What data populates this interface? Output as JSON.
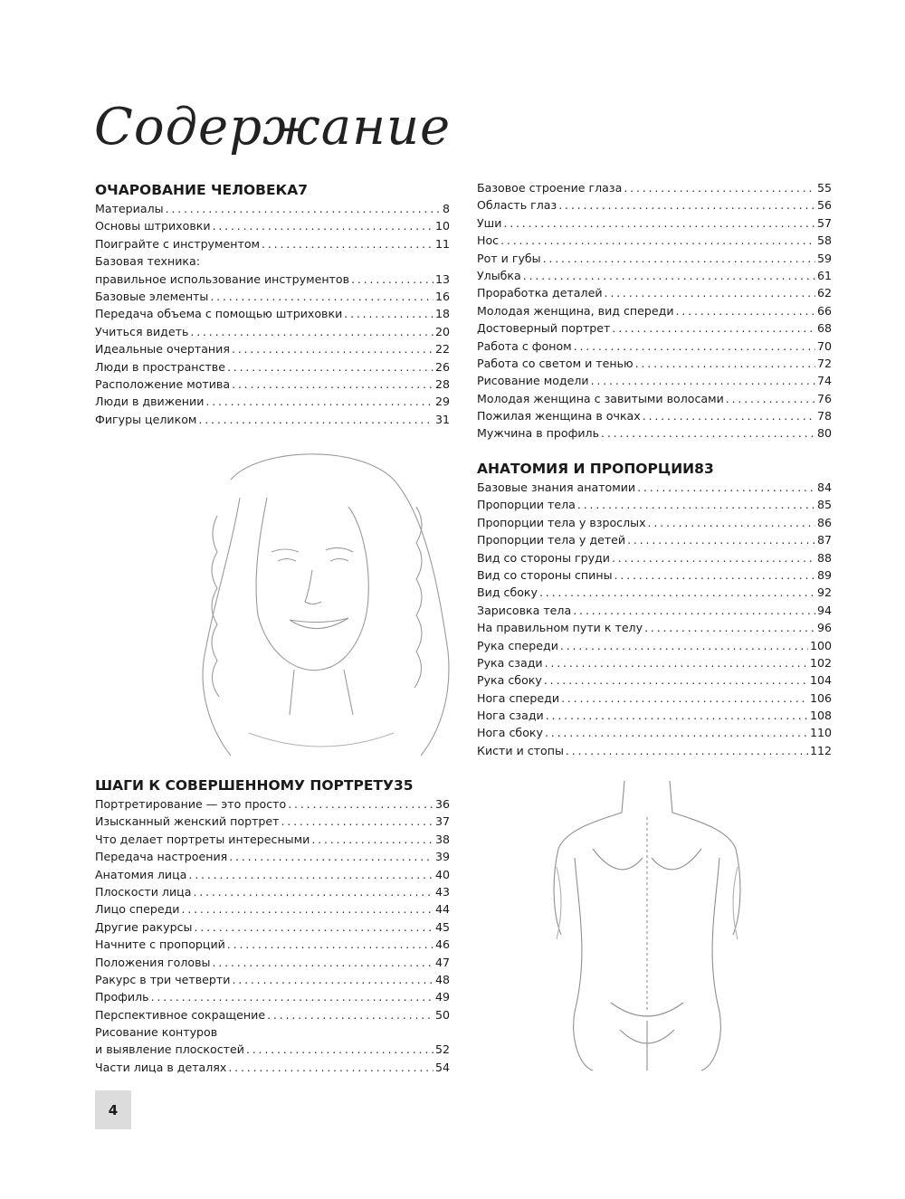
{
  "title": "Содержание",
  "page_number": "4",
  "sections": [
    {
      "heading": "ОЧАРОВАНИЕ ЧЕЛОВЕКА",
      "page": "7",
      "items": [
        {
          "label": "Материалы",
          "page": "8"
        },
        {
          "label": "Основы штриховки",
          "page": "10"
        },
        {
          "label": "Поиграйте с инструментом",
          "page": "11"
        },
        {
          "label": "Базовая техника:",
          "page": ""
        },
        {
          "label": "правильное использование инструментов",
          "page": "13"
        },
        {
          "label": "Базовые элементы",
          "page": "16"
        },
        {
          "label": "Передача объема с помощью штриховки",
          "page": "18"
        },
        {
          "label": "Учиться видеть",
          "page": "20"
        },
        {
          "label": "Идеальные очертания",
          "page": "22"
        },
        {
          "label": "Люди в пространстве",
          "page": "26"
        },
        {
          "label": "Расположение мотива",
          "page": "28"
        },
        {
          "label": "Люди в движении",
          "page": "29"
        },
        {
          "label": "Фигуры целиком",
          "page": "31"
        }
      ]
    },
    {
      "heading": "ШАГИ К СОВЕРШЕННОМУ ПОРТРЕТУ",
      "page": "35",
      "items": [
        {
          "label": "Портретирование — это просто",
          "page": "36"
        },
        {
          "label": "Изысканный женский портрет",
          "page": "37"
        },
        {
          "label": "Что делает портреты интересными",
          "page": "38"
        },
        {
          "label": "Передача настроения",
          "page": "39"
        },
        {
          "label": "Анатомия лица",
          "page": "40"
        },
        {
          "label": "Плоскости лица",
          "page": "43"
        },
        {
          "label": "Лицо спереди",
          "page": "44"
        },
        {
          "label": "Другие ракурсы",
          "page": "45"
        },
        {
          "label": "Начните с пропорций",
          "page": "46"
        },
        {
          "label": "Положения головы",
          "page": "47"
        },
        {
          "label": "Ракурс в три четверти",
          "page": "48"
        },
        {
          "label": "Профиль",
          "page": "49"
        },
        {
          "label": "Перспективное сокращение",
          "page": "50"
        },
        {
          "label": "Рисование контуров",
          "page": ""
        },
        {
          "label": "и выявление плоскостей",
          "page": "52"
        },
        {
          "label": "Части лица в деталях",
          "page": "54"
        },
        {
          "label": "Базовое строение глаза",
          "page": "55"
        },
        {
          "label": "Область глаз",
          "page": "56"
        },
        {
          "label": "Уши",
          "page": "57"
        },
        {
          "label": "Нос",
          "page": "58"
        },
        {
          "label": "Рот и губы",
          "page": "59"
        },
        {
          "label": "Улыбка",
          "page": "61"
        },
        {
          "label": "Проработка деталей",
          "page": "62"
        },
        {
          "label": "Молодая женщина, вид спереди",
          "page": "66"
        },
        {
          "label": "Достоверный портрет",
          "page": "68"
        },
        {
          "label": "Работа с фоном",
          "page": "70"
        },
        {
          "label": "Работа со светом и тенью",
          "page": "72"
        },
        {
          "label": "Рисование модели",
          "page": "74"
        },
        {
          "label": "Молодая женщина с завитыми волосами",
          "page": "76"
        },
        {
          "label": "Пожилая женщина в очках",
          "page": "78"
        },
        {
          "label": "Мужчина в профиль",
          "page": "80"
        }
      ]
    },
    {
      "heading": "АНАТОМИЯ И ПРОПОРЦИИ",
      "page": "83",
      "items": [
        {
          "label": "Базовые знания анатомии",
          "page": "84"
        },
        {
          "label": "Пропорции тела",
          "page": "85"
        },
        {
          "label": "Пропорции тела у взрослых",
          "page": "86"
        },
        {
          "label": "Пропорции тела у детей",
          "page": "87"
        },
        {
          "label": "Вид со стороны груди",
          "page": "88"
        },
        {
          "label": "Вид со стороны спины",
          "page": "89"
        },
        {
          "label": "Вид сбоку",
          "page": "92"
        },
        {
          "label": "Зарисовка тела",
          "page": "94"
        },
        {
          "label": "На правильном пути к телу",
          "page": "96"
        },
        {
          "label": "Рука спереди",
          "page": "100"
        },
        {
          "label": "Рука сзади",
          "page": "102"
        },
        {
          "label": "Рука сбоку",
          "page": "104"
        },
        {
          "label": "Нога спереди",
          "page": "106"
        },
        {
          "label": "Нога сзади",
          "page": "108"
        },
        {
          "label": "Нога сбоку",
          "page": "110"
        },
        {
          "label": "Кисти и стопы",
          "page": "112"
        }
      ]
    }
  ]
}
